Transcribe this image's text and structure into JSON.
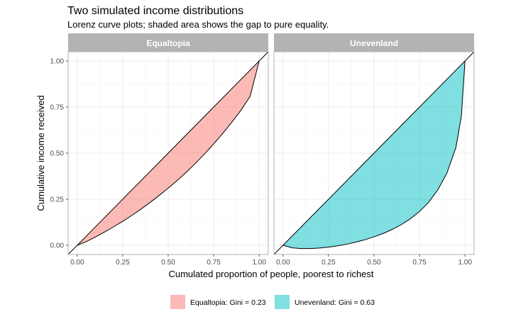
{
  "chart_data": {
    "type": "area",
    "title": "Two simulated income distributions",
    "subtitle": "Lorenz curve plots; shaded area shows the gap to pure equality.",
    "xlabel": "Cumulated proportion of people, poorest to richest",
    "ylabel": "Cumulative income received",
    "xlim": [
      -0.05,
      1.05
    ],
    "ylim": [
      -0.05,
      1.05
    ],
    "x_ticks": [
      "0.00",
      "0.25",
      "0.50",
      "0.75",
      "1.00"
    ],
    "y_ticks": [
      "0.00",
      "0.25",
      "0.50",
      "0.75",
      "1.00"
    ],
    "grid": true,
    "legend_position": "bottom",
    "panels": [
      {
        "name": "Equaltopia",
        "legend": "Equaltopia: Gini = 0.23",
        "color": "#f8766d",
        "x": [
          0,
          0.05,
          0.1,
          0.15,
          0.2,
          0.25,
          0.3,
          0.35,
          0.4,
          0.45,
          0.5,
          0.55,
          0.6,
          0.65,
          0.7,
          0.75,
          0.8,
          0.85,
          0.9,
          0.95,
          1.0
        ],
        "y": [
          0,
          0.02,
          0.045,
          0.072,
          0.1,
          0.13,
          0.162,
          0.196,
          0.232,
          0.27,
          0.31,
          0.352,
          0.397,
          0.445,
          0.496,
          0.55,
          0.607,
          0.668,
          0.733,
          0.808,
          1.0
        ]
      },
      {
        "name": "Unevenland",
        "legend": "Unevenland: Gini = 0.63",
        "color": "#00bfc4",
        "x": [
          0,
          0.05,
          0.1,
          0.15,
          0.2,
          0.25,
          0.3,
          0.35,
          0.4,
          0.45,
          0.5,
          0.55,
          0.6,
          0.65,
          0.7,
          0.75,
          0.8,
          0.85,
          0.9,
          0.95,
          0.98,
          1.0
        ],
        "y": [
          0,
          -0.014,
          -0.018,
          -0.018,
          -0.015,
          -0.01,
          -0.003,
          0.006,
          0.017,
          0.03,
          0.046,
          0.064,
          0.086,
          0.112,
          0.144,
          0.183,
          0.233,
          0.3,
          0.39,
          0.53,
          0.7,
          1.0
        ]
      }
    ]
  }
}
